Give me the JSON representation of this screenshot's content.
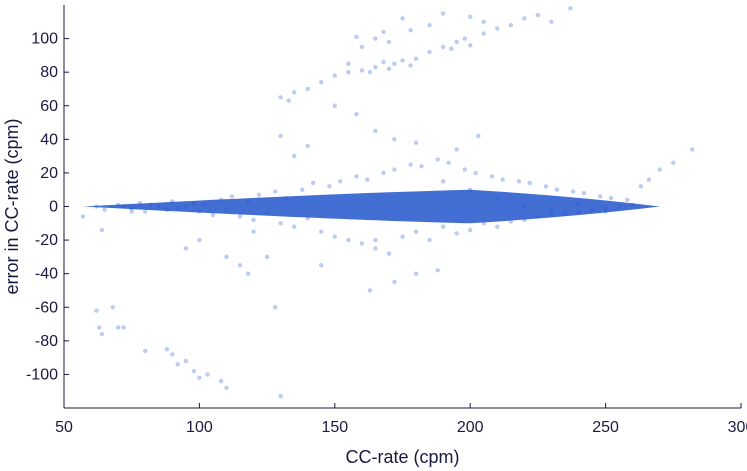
{
  "chart_data": {
    "type": "scatter",
    "xlabel": "CC-rate (cpm)",
    "ylabel": "error in CC-rate (cpm)",
    "xlim": [
      50,
      300
    ],
    "ylim": [
      -120,
      120
    ],
    "xticks": [
      50,
      100,
      150,
      200,
      250,
      300
    ],
    "yticks": [
      -100,
      -80,
      -60,
      -40,
      -20,
      0,
      20,
      40,
      60,
      80,
      100
    ],
    "grid": false,
    "marker_color": "#2255cc",
    "series": [
      {
        "points": [
          [
            62,
            0
          ],
          [
            65,
            -2
          ],
          [
            70,
            1
          ],
          [
            72,
            0
          ],
          [
            75,
            -1
          ],
          [
            78,
            2
          ],
          [
            80,
            -3
          ],
          [
            82,
            1
          ],
          [
            85,
            0
          ],
          [
            88,
            -2
          ],
          [
            90,
            3
          ],
          [
            92,
            -1
          ],
          [
            95,
            0
          ],
          [
            98,
            2
          ],
          [
            100,
            -3
          ],
          [
            102,
            1
          ],
          [
            105,
            -5
          ],
          [
            108,
            4
          ],
          [
            110,
            -2
          ],
          [
            112,
            6
          ],
          [
            115,
            -6
          ],
          [
            118,
            3
          ],
          [
            120,
            -8
          ],
          [
            122,
            7
          ],
          [
            125,
            -4
          ],
          [
            128,
            9
          ],
          [
            130,
            -10
          ],
          [
            132,
            5
          ],
          [
            135,
            -12
          ],
          [
            138,
            10
          ],
          [
            140,
            -7
          ],
          [
            142,
            14
          ],
          [
            145,
            -15
          ],
          [
            148,
            12
          ],
          [
            150,
            -18
          ],
          [
            152,
            15
          ],
          [
            155,
            -20
          ],
          [
            158,
            18
          ],
          [
            160,
            -22
          ],
          [
            162,
            16
          ],
          [
            165,
            -25
          ],
          [
            168,
            20
          ],
          [
            170,
            -28
          ],
          [
            172,
            22
          ],
          [
            175,
            -18
          ],
          [
            178,
            25
          ],
          [
            180,
            -15
          ],
          [
            182,
            24
          ],
          [
            185,
            -20
          ],
          [
            188,
            28
          ],
          [
            190,
            -12
          ],
          [
            192,
            26
          ],
          [
            195,
            -16
          ],
          [
            198,
            22
          ],
          [
            200,
            -14
          ],
          [
            202,
            20
          ],
          [
            205,
            -10
          ],
          [
            208,
            18
          ],
          [
            210,
            -12
          ],
          [
            212,
            16
          ],
          [
            215,
            -9
          ],
          [
            218,
            15
          ],
          [
            220,
            -8
          ],
          [
            222,
            14
          ],
          [
            225,
            -6
          ],
          [
            228,
            12
          ],
          [
            230,
            -5
          ],
          [
            232,
            10
          ],
          [
            235,
            -4
          ],
          [
            238,
            9
          ],
          [
            240,
            -3
          ],
          [
            242,
            8
          ],
          [
            245,
            -2
          ],
          [
            248,
            6
          ],
          [
            250,
            -1
          ],
          [
            252,
            5
          ],
          [
            255,
            0
          ],
          [
            258,
            4
          ],
          [
            260,
            1
          ],
          [
            263,
            12
          ],
          [
            266,
            16
          ],
          [
            270,
            22
          ],
          [
            275,
            26
          ],
          [
            282,
            34
          ],
          [
            57,
            -6
          ],
          [
            64,
            -14
          ],
          [
            75,
            -3
          ],
          [
            95,
            -25
          ],
          [
            100,
            -20
          ],
          [
            110,
            -30
          ],
          [
            118,
            -40
          ],
          [
            125,
            -30
          ],
          [
            130,
            42
          ],
          [
            140,
            36
          ],
          [
            150,
            60
          ],
          [
            158,
            55
          ],
          [
            165,
            45
          ],
          [
            172,
            40
          ],
          [
            180,
            38
          ],
          [
            195,
            34
          ],
          [
            203,
            42
          ],
          [
            115,
            -35
          ],
          [
            120,
            -15
          ],
          [
            135,
            30
          ],
          [
            145,
            -35
          ],
          [
            163,
            -50
          ],
          [
            172,
            -45
          ],
          [
            180,
            -40
          ],
          [
            188,
            -38
          ],
          [
            165,
            -20
          ],
          [
            190,
            15
          ],
          [
            200,
            10
          ],
          [
            210,
            5
          ],
          [
            220,
            0
          ],
          [
            230,
            -2
          ],
          [
            240,
            2
          ],
          [
            250,
            -3
          ],
          [
            130,
            65
          ],
          [
            133,
            63
          ],
          [
            135,
            68
          ],
          [
            140,
            70
          ],
          [
            145,
            74
          ],
          [
            150,
            78
          ],
          [
            155,
            80
          ],
          [
            160,
            81
          ],
          [
            163,
            80
          ],
          [
            165,
            83
          ],
          [
            168,
            86
          ],
          [
            170,
            82
          ],
          [
            172,
            85
          ],
          [
            175,
            87
          ],
          [
            178,
            84
          ],
          [
            180,
            88
          ],
          [
            185,
            92
          ],
          [
            190,
            95
          ],
          [
            193,
            94
          ],
          [
            195,
            98
          ],
          [
            198,
            100
          ],
          [
            200,
            96
          ],
          [
            205,
            103
          ],
          [
            210,
            106
          ],
          [
            215,
            108
          ],
          [
            220,
            112
          ],
          [
            225,
            114
          ],
          [
            230,
            110
          ],
          [
            237,
            118
          ],
          [
            155,
            85
          ],
          [
            160,
            95
          ],
          [
            165,
            100
          ],
          [
            170,
            98
          ],
          [
            175,
            112
          ],
          [
            178,
            105
          ],
          [
            185,
            108
          ],
          [
            190,
            115
          ],
          [
            200,
            113
          ],
          [
            205,
            110
          ],
          [
            158,
            101
          ],
          [
            168,
            104
          ],
          [
            62,
            -62
          ],
          [
            63,
            -72
          ],
          [
            64,
            -76
          ],
          [
            68,
            -60
          ],
          [
            70,
            -72
          ],
          [
            72,
            -72
          ],
          [
            80,
            -86
          ],
          [
            88,
            -85
          ],
          [
            90,
            -88
          ],
          [
            92,
            -94
          ],
          [
            95,
            -92
          ],
          [
            98,
            -98
          ],
          [
            100,
            -102
          ],
          [
            103,
            -100
          ],
          [
            108,
            -104
          ],
          [
            110,
            -108
          ],
          [
            128,
            -60
          ],
          [
            130,
            -113
          ]
        ]
      }
    ]
  }
}
